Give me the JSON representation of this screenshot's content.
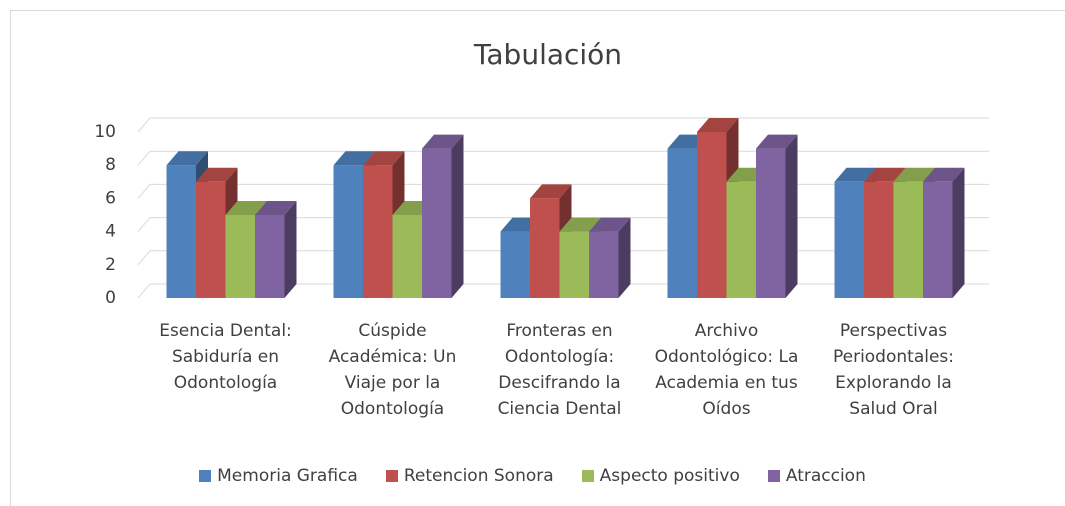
{
  "chart_data": {
    "type": "bar3d",
    "title": "Tabulación",
    "categories": [
      "Esencia Dental: Sabiduría en Odontología",
      "Cúspide Académica: Un Viaje por la Odontología",
      "Fronteras en Odontología: Descifrando la Ciencia Dental",
      "Archivo Odontológico: La Academia en tus Oídos",
      "Perspectivas Periodontales: Explorando la Salud Oral"
    ],
    "series": [
      {
        "name": "Memoria Grafica",
        "color": "#4f81bd",
        "values": [
          8,
          8,
          4,
          9,
          7
        ]
      },
      {
        "name": "Retencion Sonora",
        "color": "#c0504d",
        "values": [
          7,
          8,
          6,
          10,
          7
        ]
      },
      {
        "name": "Aspecto positivo",
        "color": "#9bbb59",
        "values": [
          5,
          5,
          4,
          7,
          7
        ]
      },
      {
        "name": "Atraccion",
        "color": "#8064a2",
        "values": [
          5,
          9,
          4,
          9,
          7
        ]
      }
    ],
    "ylim": [
      0,
      10
    ],
    "yticks": [
      0,
      2,
      4,
      6,
      8,
      10
    ],
    "grid": true,
    "legend": "bottom"
  }
}
